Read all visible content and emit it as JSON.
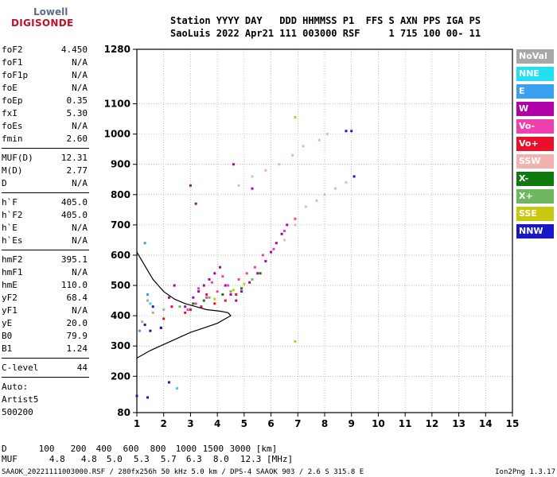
{
  "logo": {
    "brand_top": "Lowell",
    "brand_bottom": "DIGISONDE"
  },
  "header": {
    "line1": "Station YYYY DAY   DDD HHMMSS P1  FFS S AXN PPS IGA PS",
    "line2": "SaoLuis 2022 Apr21 111 003000 RSF     1 715 100 00- 11"
  },
  "params": {
    "group1": [
      {
        "name": "foF2",
        "value": "4.450"
      },
      {
        "name": "foF1",
        "value": "N/A"
      },
      {
        "name": "foF1p",
        "value": "N/A"
      },
      {
        "name": "foE",
        "value": "N/A"
      },
      {
        "name": "foEp",
        "value": "0.35"
      },
      {
        "name": "fxI",
        "value": "5.30"
      },
      {
        "name": "foEs",
        "value": "N/A"
      },
      {
        "name": "fmin",
        "value": "2.60"
      }
    ],
    "group2": [
      {
        "name": "MUF(D)",
        "value": "12.31"
      },
      {
        "name": "M(D)",
        "value": "2.77"
      },
      {
        "name": "D",
        "value": "N/A"
      }
    ],
    "group3": [
      {
        "name": "h`F",
        "value": "405.0"
      },
      {
        "name": "h`F2",
        "value": "405.0"
      },
      {
        "name": "h`E",
        "value": "N/A"
      },
      {
        "name": "h`Es",
        "value": "N/A"
      }
    ],
    "group4": [
      {
        "name": "hmF2",
        "value": "395.1"
      },
      {
        "name": "hmF1",
        "value": "N/A"
      },
      {
        "name": "hmE",
        "value": "110.0"
      },
      {
        "name": "yF2",
        "value": "68.4"
      },
      {
        "name": "yF1",
        "value": "N/A"
      },
      {
        "name": "yE",
        "value": "20.0"
      },
      {
        "name": "B0",
        "value": "79.9"
      },
      {
        "name": "B1",
        "value": "1.24"
      }
    ],
    "clevel": {
      "name": "C-level",
      "value": "44"
    },
    "auto_label": "Auto:",
    "artist": "Artist5",
    "artist_ver": "500200"
  },
  "legend": [
    {
      "label": "NoVal",
      "color": "#a8a8a8"
    },
    {
      "label": "NNE",
      "color": "#22e0f0"
    },
    {
      "label": "E",
      "color": "#3ca0f0"
    },
    {
      "label": "W",
      "color": "#b000a8"
    },
    {
      "label": "Vo-",
      "color": "#f040b0"
    },
    {
      "label": "Vo+",
      "color": "#e8102a"
    },
    {
      "label": "SSW",
      "color": "#f0b4b0"
    },
    {
      "label": "X-",
      "color": "#107a10"
    },
    {
      "label": "X+",
      "color": "#70b860"
    },
    {
      "label": "SSE",
      "color": "#c8c810"
    },
    {
      "label": "NNW",
      "color": "#1818c8"
    }
  ],
  "chart_data": {
    "type": "scatter",
    "xlim": [
      1,
      15
    ],
    "ylim": [
      80,
      1280
    ],
    "x_ticks": [
      "1",
      "2",
      "3",
      "4",
      "5",
      "6",
      "7",
      "8",
      "9",
      "10",
      "11",
      "12",
      "13",
      "14",
      "15"
    ],
    "y_ticks": [
      "80",
      "200",
      "300",
      "400",
      "500",
      "600",
      "700",
      "800",
      "900",
      "1000",
      "1100",
      "1280"
    ],
    "grid": true,
    "series": [
      {
        "name": "W",
        "color": "#b000a8",
        "points": [
          [
            2.8,
            430
          ],
          [
            3.1,
            460
          ],
          [
            3.3,
            480
          ],
          [
            3.5,
            500
          ],
          [
            3.7,
            520
          ],
          [
            3.9,
            540
          ],
          [
            4.1,
            560
          ],
          [
            4.3,
            500
          ],
          [
            4.5,
            470
          ],
          [
            4.7,
            450
          ],
          [
            4.9,
            480
          ],
          [
            5.2,
            510
          ],
          [
            5.5,
            540
          ],
          [
            5.8,
            580
          ],
          [
            6.0,
            610
          ],
          [
            6.2,
            640
          ],
          [
            6.4,
            670
          ],
          [
            6.6,
            700
          ],
          [
            2.2,
            460
          ],
          [
            2.4,
            500
          ],
          [
            3.0,
            830
          ],
          [
            3.2,
            770
          ],
          [
            4.6,
            900
          ],
          [
            5.3,
            820
          ]
        ]
      },
      {
        "name": "Vo-",
        "color": "#f040b0",
        "points": [
          [
            2.9,
            420
          ],
          [
            3.2,
            440
          ],
          [
            3.6,
            460
          ],
          [
            4.0,
            480
          ],
          [
            4.4,
            500
          ],
          [
            4.8,
            520
          ],
          [
            5.1,
            540
          ],
          [
            5.4,
            560
          ],
          [
            5.7,
            600
          ],
          [
            6.1,
            620
          ],
          [
            6.5,
            680
          ],
          [
            6.9,
            720
          ],
          [
            3.3,
            490
          ],
          [
            3.8,
            510
          ],
          [
            4.2,
            530
          ]
        ]
      },
      {
        "name": "Vo+",
        "color": "#e8102a",
        "points": [
          [
            2.8,
            410
          ],
          [
            3.0,
            420
          ],
          [
            3.4,
            430
          ],
          [
            3.9,
            440
          ],
          [
            4.3,
            450
          ],
          [
            4.7,
            470
          ],
          [
            1.9,
            360
          ],
          [
            2.0,
            390
          ],
          [
            2.3,
            430
          ],
          [
            3.6,
            470
          ]
        ]
      },
      {
        "name": "SSW",
        "color": "#f0b4b0",
        "points": [
          [
            4.8,
            830
          ],
          [
            5.3,
            860
          ],
          [
            5.8,
            880
          ],
          [
            6.3,
            900
          ],
          [
            6.8,
            930
          ],
          [
            7.2,
            960
          ],
          [
            7.8,
            980
          ],
          [
            8.1,
            1000
          ],
          [
            7.3,
            760
          ],
          [
            7.7,
            780
          ],
          [
            8.0,
            800
          ],
          [
            8.4,
            820
          ],
          [
            8.8,
            840
          ],
          [
            6.5,
            650
          ],
          [
            6.9,
            700
          ]
        ]
      },
      {
        "name": "X-",
        "color": "#107a10",
        "points": [
          [
            3.5,
            450
          ],
          [
            4.2,
            470
          ],
          [
            4.9,
            490
          ],
          [
            5.6,
            540
          ],
          [
            3.1,
            440
          ]
        ]
      },
      {
        "name": "X+",
        "color": "#70b860",
        "points": [
          [
            3.7,
            460
          ],
          [
            4.5,
            480
          ],
          [
            5.3,
            520
          ],
          [
            2.6,
            430
          ]
        ]
      },
      {
        "name": "SSE",
        "color": "#c8c810",
        "points": [
          [
            3.9,
            455
          ],
          [
            4.6,
            485
          ],
          [
            5.0,
            505
          ],
          [
            6.9,
            1055
          ],
          [
            6.9,
            315
          ]
        ]
      },
      {
        "name": "NNW",
        "color": "#1818c8",
        "points": [
          [
            1.4,
            470
          ],
          [
            1.6,
            430
          ],
          [
            1.3,
            370
          ],
          [
            1.5,
            350
          ],
          [
            8.8,
            1010
          ],
          [
            9.0,
            1010
          ],
          [
            9.1,
            860
          ],
          [
            1.9,
            360
          ],
          [
            2.2,
            180
          ],
          [
            1.0,
            135
          ],
          [
            1.4,
            130
          ]
        ]
      },
      {
        "name": "E",
        "color": "#3ca0f0",
        "points": [
          [
            1.1,
            350
          ],
          [
            1.3,
            640
          ],
          [
            1.4,
            470
          ]
        ]
      },
      {
        "name": "NNE",
        "color": "#22e0f0",
        "points": [
          [
            1.5,
            440
          ],
          [
            2.5,
            160
          ]
        ]
      },
      {
        "name": "NoVal",
        "color": "#a8a8a8",
        "points": [
          [
            1.4,
            450
          ],
          [
            1.6,
            410
          ],
          [
            2.0,
            420
          ],
          [
            1.2,
            380
          ]
        ]
      }
    ],
    "profile_curve": [
      [
        1.0,
        260
      ],
      [
        1.5,
        285
      ],
      [
        2.0,
        305
      ],
      [
        2.5,
        325
      ],
      [
        3.0,
        345
      ],
      [
        3.5,
        360
      ],
      [
        4.0,
        375
      ],
      [
        4.4,
        395
      ],
      [
        4.5,
        400
      ],
      [
        4.4,
        410
      ],
      [
        4.1,
        415
      ],
      [
        3.6,
        420
      ],
      [
        3.2,
        430
      ],
      [
        2.8,
        440
      ],
      [
        2.4,
        455
      ],
      [
        2.0,
        480
      ],
      [
        1.6,
        520
      ],
      [
        1.2,
        580
      ],
      [
        1.0,
        610
      ]
    ]
  },
  "scale_table": {
    "d_label": "D",
    "d_values": [
      "100",
      "200",
      "400",
      "600",
      "800",
      "1000",
      "1500",
      "3000 [km]"
    ],
    "muf_label": "MUF",
    "muf_values": [
      "4.8",
      "4.8",
      "5.0",
      "5.3",
      "5.7",
      "6.3",
      "8.0",
      "12.3 [MHz]"
    ]
  },
  "footer": {
    "left": "SAAOK_20221111003000.RSF / 280fx256h 50 kHz 5.0 km / DPS-4 SAAOK 903 / 2.6 S 315.8 E",
    "right": "Ion2Png 1.3.17"
  }
}
